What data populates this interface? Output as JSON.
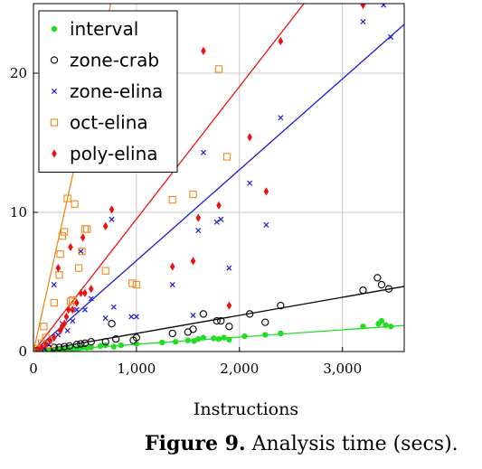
{
  "caption": {
    "label": "Figure 9.",
    "text": "Analysis time (secs)."
  },
  "chart_data": {
    "type": "scatter",
    "title": "",
    "xlabel": "Instructions",
    "ylabel": "",
    "xlim": [
      0,
      3600
    ],
    "ylim": [
      0,
      25
    ],
    "xticks": [
      0,
      1000,
      2000,
      3000
    ],
    "xtick_labels": [
      "0",
      "1,000",
      "2,000",
      "3,000"
    ],
    "yticks": [
      0,
      10,
      20
    ],
    "ytick_labels": [
      "0",
      "10",
      "20"
    ],
    "grid": true,
    "legend_position": "top-left",
    "series": [
      {
        "name": "interval",
        "color": "#22dd22",
        "marker": "filled-circle",
        "trend": {
          "slope": 0.00052,
          "intercept": 0
        },
        "points": [
          [
            30,
            0.02
          ],
          [
            60,
            0.05
          ],
          [
            90,
            0.05
          ],
          [
            120,
            0.1
          ],
          [
            150,
            0.08
          ],
          [
            180,
            0.1
          ],
          [
            220,
            0.12
          ],
          [
            260,
            0.15
          ],
          [
            300,
            0.12
          ],
          [
            340,
            0.2
          ],
          [
            380,
            0.18
          ],
          [
            420,
            0.22
          ],
          [
            450,
            0.25
          ],
          [
            480,
            0.3
          ],
          [
            520,
            0.28
          ],
          [
            560,
            0.3
          ],
          [
            650,
            0.4
          ],
          [
            700,
            0.45
          ],
          [
            780,
            0.35
          ],
          [
            850,
            0.45
          ],
          [
            1000,
            0.55
          ],
          [
            1250,
            0.65
          ],
          [
            1380,
            0.7
          ],
          [
            1500,
            0.8
          ],
          [
            1560,
            0.75
          ],
          [
            1600,
            0.9
          ],
          [
            1650,
            1.0
          ],
          [
            1750,
            0.95
          ],
          [
            1800,
            0.9
          ],
          [
            1850,
            1.0
          ],
          [
            1900,
            0.85
          ],
          [
            2050,
            1.1
          ],
          [
            2250,
            1.2
          ],
          [
            2400,
            1.3
          ],
          [
            3200,
            1.8
          ],
          [
            3350,
            2.0
          ],
          [
            3380,
            2.2
          ],
          [
            3420,
            1.9
          ],
          [
            3470,
            1.8
          ]
        ]
      },
      {
        "name": "zone-crab",
        "color": "#000000",
        "marker": "open-circle",
        "trend": {
          "slope": 0.0013,
          "intercept": 0
        },
        "points": [
          [
            30,
            0.05
          ],
          [
            60,
            0.1
          ],
          [
            90,
            0.08
          ],
          [
            150,
            0.2
          ],
          [
            200,
            0.3
          ],
          [
            250,
            0.3
          ],
          [
            300,
            0.35
          ],
          [
            350,
            0.4
          ],
          [
            420,
            0.5
          ],
          [
            460,
            0.55
          ],
          [
            500,
            0.6
          ],
          [
            560,
            0.7
          ],
          [
            700,
            0.7
          ],
          [
            760,
            2.0
          ],
          [
            800,
            0.9
          ],
          [
            970,
            0.8
          ],
          [
            1000,
            1.0
          ],
          [
            1350,
            1.3
          ],
          [
            1500,
            1.4
          ],
          [
            1550,
            1.6
          ],
          [
            1650,
            2.7
          ],
          [
            1780,
            2.2
          ],
          [
            1820,
            2.2
          ],
          [
            1900,
            1.8
          ],
          [
            2100,
            2.7
          ],
          [
            2250,
            2.1
          ],
          [
            2400,
            3.3
          ],
          [
            3200,
            4.4
          ],
          [
            3340,
            5.3
          ],
          [
            3380,
            4.8
          ],
          [
            3450,
            4.5
          ]
        ]
      },
      {
        "name": "zone-elina",
        "color": "#1a1ad6",
        "marker": "cross",
        "trend": {
          "slope": 0.00653,
          "intercept": 0
        },
        "points": [
          [
            50,
            0.1
          ],
          [
            100,
            0.2
          ],
          [
            150,
            0.5
          ],
          [
            200,
            4.8
          ],
          [
            240,
            1.2
          ],
          [
            280,
            2.0
          ],
          [
            330,
            1.5
          ],
          [
            380,
            2.2
          ],
          [
            420,
            3.0
          ],
          [
            460,
            7.2
          ],
          [
            500,
            3.0
          ],
          [
            560,
            3.8
          ],
          [
            700,
            2.4
          ],
          [
            760,
            9.5
          ],
          [
            780,
            3.2
          ],
          [
            950,
            2.5
          ],
          [
            1000,
            2.5
          ],
          [
            1350,
            4.8
          ],
          [
            1550,
            2.6
          ],
          [
            1600,
            8.7
          ],
          [
            1650,
            14.3
          ],
          [
            1780,
            9.3
          ],
          [
            1820,
            9.5
          ],
          [
            1900,
            6.0
          ],
          [
            2100,
            12.1
          ],
          [
            2260,
            9.1
          ],
          [
            2400,
            16.8
          ],
          [
            3200,
            23.7
          ],
          [
            3400,
            24.9
          ],
          [
            3470,
            22.6
          ]
        ]
      },
      {
        "name": "oct-elina",
        "color": "#ee8a1c",
        "marker": "open-square",
        "trend": {
          "slope": 0.0333,
          "intercept": 0
        },
        "points": [
          [
            40,
            0.2
          ],
          [
            80,
            0.6
          ],
          [
            100,
            1.8
          ],
          [
            120,
            1.0
          ],
          [
            150,
            0.5
          ],
          [
            200,
            3.5
          ],
          [
            250,
            5.5
          ],
          [
            260,
            7.0
          ],
          [
            280,
            8.3
          ],
          [
            300,
            8.6
          ],
          [
            330,
            11.0
          ],
          [
            360,
            3.6
          ],
          [
            380,
            3.7
          ],
          [
            400,
            10.6
          ],
          [
            440,
            6.0
          ],
          [
            470,
            7.2
          ],
          [
            500,
            8.8
          ],
          [
            520,
            8.8
          ],
          [
            700,
            5.8
          ],
          [
            960,
            4.9
          ],
          [
            1000,
            4.8
          ],
          [
            1350,
            10.9
          ],
          [
            1550,
            11.3
          ],
          [
            1800,
            20.3
          ],
          [
            1880,
            14.0
          ]
        ]
      },
      {
        "name": "poly-elina",
        "color": "#ee1111",
        "marker": "diamond",
        "trend": {
          "slope": 0.00952,
          "intercept": 0
        },
        "points": [
          [
            40,
            0.1
          ],
          [
            80,
            0.3
          ],
          [
            120,
            0.5
          ],
          [
            160,
            0.8
          ],
          [
            200,
            1.0
          ],
          [
            240,
            6.0
          ],
          [
            260,
            1.5
          ],
          [
            280,
            1.8
          ],
          [
            300,
            2.0
          ],
          [
            320,
            2.5
          ],
          [
            340,
            3.0
          ],
          [
            360,
            7.5
          ],
          [
            380,
            3.0
          ],
          [
            420,
            3.5
          ],
          [
            460,
            4.2
          ],
          [
            480,
            8.2
          ],
          [
            500,
            4.2
          ],
          [
            560,
            4.5
          ],
          [
            700,
            9.0
          ],
          [
            760,
            10.2
          ],
          [
            1350,
            6.1
          ],
          [
            1550,
            6.5
          ],
          [
            1600,
            9.6
          ],
          [
            1650,
            21.6
          ],
          [
            1800,
            10.5
          ],
          [
            1900,
            3.3
          ],
          [
            2100,
            15.4
          ],
          [
            2260,
            11.5
          ],
          [
            2400,
            22.3
          ],
          [
            3200,
            24.9
          ]
        ]
      }
    ]
  }
}
